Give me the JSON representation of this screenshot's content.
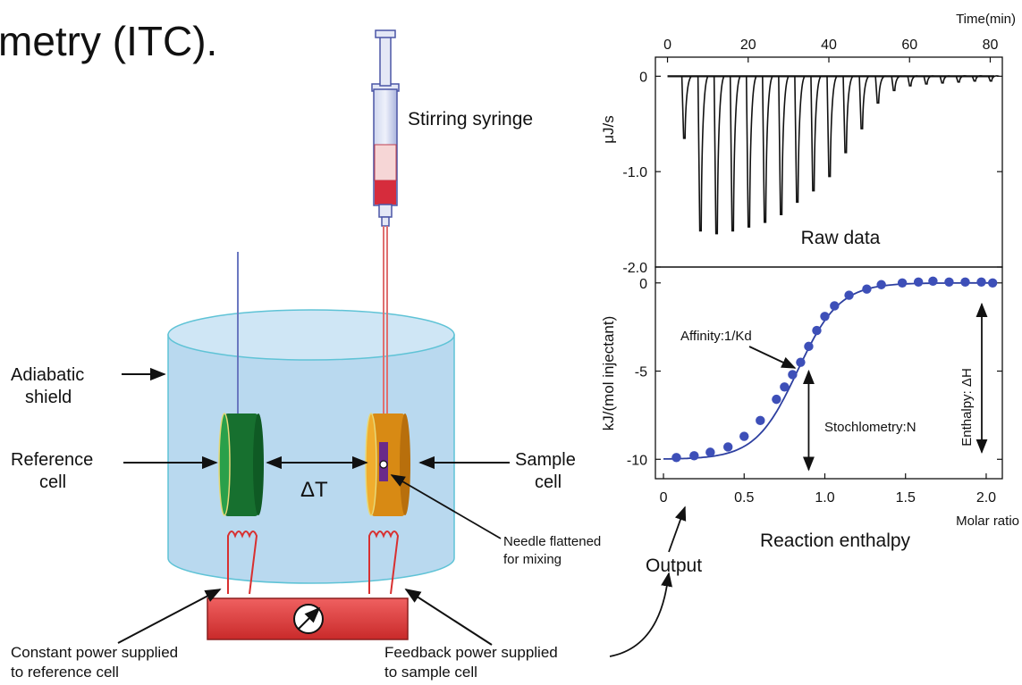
{
  "title_fragment": "metry (ITC).",
  "labels": {
    "stirring_syringe": "Stirring syringe",
    "adiabatic_shield": [
      "Adiabatic",
      "shield"
    ],
    "reference_cell": [
      "Reference",
      "cell"
    ],
    "sample_cell": [
      "Sample",
      "cell"
    ],
    "delta_t": "ΔT",
    "needle": [
      "Needle flattened",
      "for mixing"
    ],
    "constant_power": [
      "Constant power supplied",
      "to reference cell"
    ],
    "feedback_power": [
      "Feedback power supplied",
      "to sample cell"
    ],
    "output": "Output"
  },
  "colors": {
    "shield_fill": "#b9d9ef",
    "shield_stroke": "#5fc3d6",
    "reference_cell": "#1f8a3c",
    "sample_cell": "#e8a020",
    "heater_box": "#e04040",
    "heater_wire": "#d83030",
    "fit_curve": "#2d3fa0",
    "points": "#3d4fb8"
  },
  "chart_data": [
    {
      "type": "line",
      "title": "Raw data",
      "xlabel": "Time(min)",
      "ylabel": "μJ/s",
      "xlim": [
        -3,
        83
      ],
      "ylim": [
        -2.0,
        0.2
      ],
      "xticks": [
        0,
        20,
        40,
        60,
        80
      ],
      "yticks": [
        0,
        -1.0,
        -2.0
      ],
      "ytick_labels": [
        "0",
        "-1.0",
        "-2.0"
      ],
      "series": [
        {
          "injection_times_min": [
            4,
            8,
            12,
            16,
            20,
            24,
            28,
            32,
            36,
            40,
            44,
            48,
            52,
            56,
            60,
            64,
            68,
            72,
            76,
            80
          ],
          "peak_values": [
            -0.65,
            -1.62,
            -1.65,
            -1.62,
            -1.58,
            -1.53,
            -1.45,
            -1.32,
            -1.2,
            -1.05,
            -0.8,
            -0.55,
            -0.28,
            -0.15,
            -0.1,
            -0.08,
            -0.07,
            -0.06,
            -0.05,
            -0.05
          ]
        }
      ]
    },
    {
      "type": "scatter",
      "xlabel": "Molar ratio",
      "ylabel": "kJ/(mol injectant)",
      "caption": "Reaction enthalpy",
      "xlim": [
        -0.05,
        2.1
      ],
      "ylim": [
        -11.1,
        0.9
      ],
      "xticks": [
        0,
        0.5,
        1.0,
        1.5,
        2.0
      ],
      "xtick_labels": [
        "0",
        "0.5",
        "1.0",
        "1.5",
        "2.0"
      ],
      "yticks": [
        0,
        -5,
        -10
      ],
      "ytick_labels": [
        "0",
        "-5",
        "-10"
      ],
      "series": [
        {
          "x": [
            0.08,
            0.19,
            0.29,
            0.4,
            0.5,
            0.6,
            0.7,
            0.75,
            0.8,
            0.85,
            0.9,
            0.95,
            1.0,
            1.06,
            1.15,
            1.26,
            1.35,
            1.48,
            1.58,
            1.67,
            1.77,
            1.87,
            1.97,
            2.04
          ],
          "y": [
            -9.9,
            -9.8,
            -9.6,
            -9.3,
            -8.7,
            -7.8,
            -6.6,
            -5.9,
            -5.2,
            -4.5,
            -3.6,
            -2.7,
            -1.9,
            -1.3,
            -0.7,
            -0.35,
            -0.1,
            0.0,
            0.05,
            0.1,
            0.05,
            0.05,
            0.05,
            0.0
          ]
        }
      ],
      "annotations": [
        "Affinity:1/Kd",
        "Stochlometry:N",
        "Enthalpy: ΔH"
      ]
    }
  ]
}
